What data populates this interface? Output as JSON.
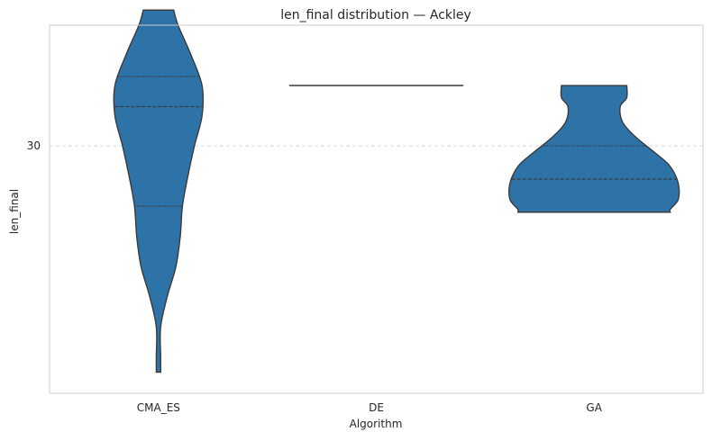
{
  "chart_data": {
    "type": "violin",
    "title": "len_final distribution — Ackley",
    "xlabel": "Algorithm",
    "ylabel": "len_final",
    "categories": [
      "CMA_ES",
      "DE",
      "GA"
    ],
    "y_ticks": [
      30
    ],
    "y_tick_labels": [
      "30"
    ],
    "ylim": [
      21.8,
      34.0
    ],
    "grid": "horizontal dashed",
    "inner": "quartile",
    "color": "#2e73a8",
    "edge_color": "#3a3a3a",
    "violins": [
      {
        "category": "CMA_ES",
        "min": 22.5,
        "max": 34.5,
        "quartiles": [
          28.0,
          31.3,
          32.3
        ],
        "profile": [
          {
            "y": 34.5,
            "w": 0.14
          },
          {
            "y": 34.0,
            "w": 0.18
          },
          {
            "y": 33.0,
            "w": 0.3
          },
          {
            "y": 32.0,
            "w": 0.4
          },
          {
            "y": 31.0,
            "w": 0.4
          },
          {
            "y": 30.0,
            "w": 0.33
          },
          {
            "y": 29.0,
            "w": 0.27
          },
          {
            "y": 28.0,
            "w": 0.22
          },
          {
            "y": 27.0,
            "w": 0.2
          },
          {
            "y": 26.0,
            "w": 0.16
          },
          {
            "y": 25.0,
            "w": 0.08
          },
          {
            "y": 24.0,
            "w": 0.02
          },
          {
            "y": 23.0,
            "w": 0.02
          },
          {
            "y": 22.5,
            "w": 0.02
          }
        ]
      },
      {
        "category": "DE",
        "min": 32.0,
        "max": 32.0,
        "quartiles": [
          32.0,
          32.0,
          32.0
        ],
        "single_value": 32.0,
        "line_width": 0.8
      },
      {
        "category": "GA",
        "min": 27.8,
        "max": 32.0,
        "quartiles": [
          27.8,
          28.9,
          30.0
        ],
        "profile": [
          {
            "y": 32.0,
            "w": 0.3
          },
          {
            "y": 31.6,
            "w": 0.3
          },
          {
            "y": 31.3,
            "w": 0.24
          },
          {
            "y": 30.8,
            "w": 0.26
          },
          {
            "y": 30.3,
            "w": 0.38
          },
          {
            "y": 29.8,
            "w": 0.55
          },
          {
            "y": 29.4,
            "w": 0.68
          },
          {
            "y": 29.0,
            "w": 0.75
          },
          {
            "y": 28.6,
            "w": 0.78
          },
          {
            "y": 28.2,
            "w": 0.77
          },
          {
            "y": 27.9,
            "w": 0.7
          },
          {
            "y": 27.8,
            "w": 0.7
          }
        ]
      }
    ]
  }
}
